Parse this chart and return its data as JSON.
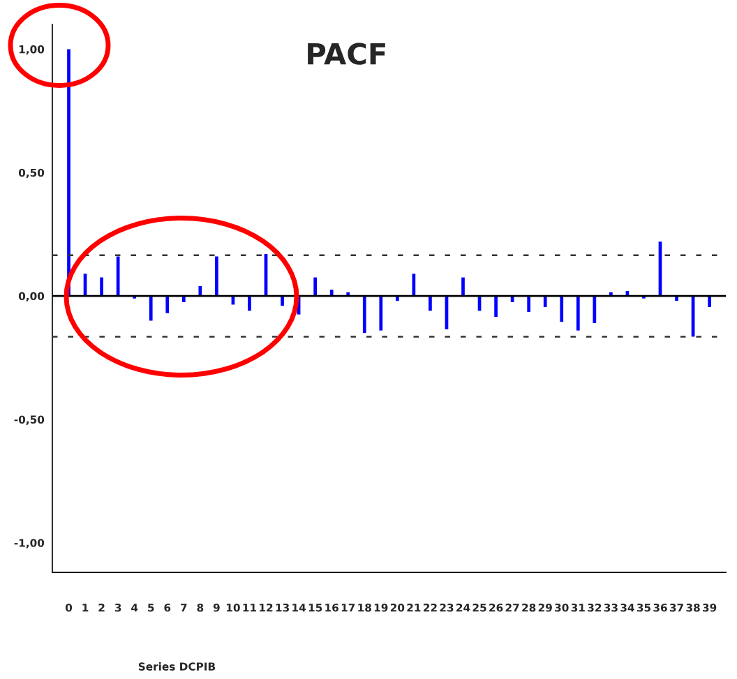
{
  "chart_data": {
    "type": "bar",
    "title": "PACF",
    "xlabel": "Series DCPIB",
    "categories": [
      "0",
      "1",
      "2",
      "3",
      "4",
      "5",
      "6",
      "7",
      "8",
      "9",
      "10",
      "11",
      "12",
      "13",
      "14",
      "15",
      "16",
      "17",
      "18",
      "19",
      "20",
      "21",
      "22",
      "23",
      "24",
      "25",
      "26",
      "27",
      "28",
      "29",
      "30",
      "31",
      "32",
      "33",
      "34",
      "35",
      "36",
      "37",
      "38",
      "39"
    ],
    "series": [
      {
        "color": "#0000ff",
        "values": [
          1.0,
          0.09,
          0.075,
          0.16,
          -0.01,
          -0.1,
          -0.07,
          -0.025,
          0.04,
          0.16,
          -0.035,
          -0.06,
          0.17,
          -0.04,
          -0.075,
          0.075,
          0.025,
          0.015,
          -0.15,
          -0.14,
          -0.02,
          0.09,
          -0.06,
          -0.135,
          0.075,
          -0.06,
          -0.085,
          -0.025,
          -0.065,
          -0.045,
          -0.105,
          -0.14,
          -0.11,
          0.015,
          0.02,
          -0.01,
          0.22,
          -0.02,
          -0.165,
          -0.045
        ]
      }
    ],
    "ylim": [
      -1.12,
      1.1
    ],
    "yticks": [
      {
        "value": 1.0,
        "label": "1,00"
      },
      {
        "value": 0.5,
        "label": "0,50"
      },
      {
        "value": 0.0,
        "label": "0,00"
      },
      {
        "value": -0.5,
        "label": "-0,50"
      },
      {
        "value": -1.0,
        "label": "-1,00"
      }
    ],
    "ref_lines": [
      {
        "axis": "y",
        "value": 0,
        "color": "#000000",
        "line_style": "solid"
      },
      {
        "axis": "y",
        "value": 0.165,
        "color": "#333333",
        "line_style": "dashed"
      },
      {
        "axis": "y",
        "value": -0.165,
        "color": "#333333",
        "line_style": "dashed"
      }
    ],
    "grid": false,
    "legend": false
  }
}
